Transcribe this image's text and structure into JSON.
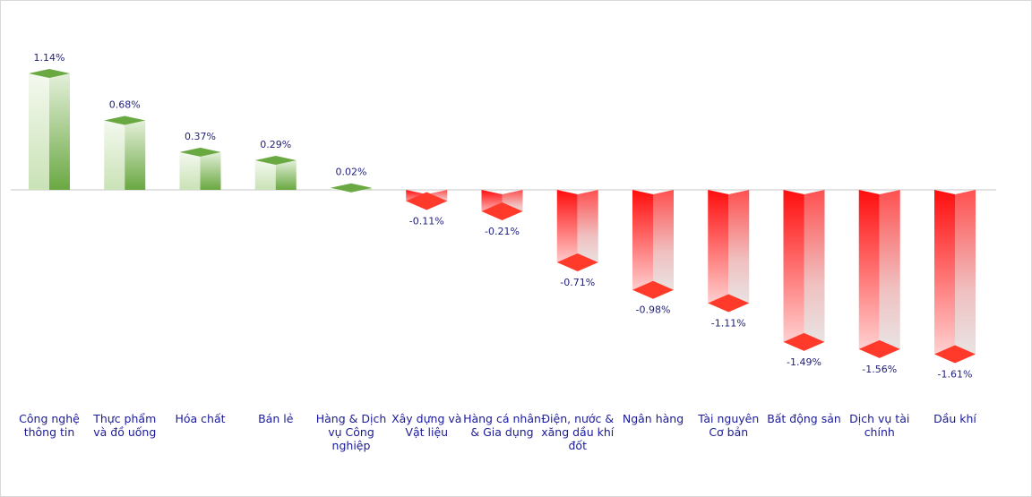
{
  "chart_data": {
    "type": "bar",
    "title": "",
    "xlabel": "",
    "ylabel": "",
    "categories": [
      [
        "Công nghệ",
        "thông tin"
      ],
      [
        "Thực phẩm",
        "và đồ uống"
      ],
      [
        "Hóa chất"
      ],
      [
        "Bán lẻ"
      ],
      [
        "Hàng & Dịch",
        "vụ Công",
        "nghiệp"
      ],
      [
        "Xây dựng và",
        "Vật liệu"
      ],
      [
        "Hàng cá nhân",
        "& Gia dụng"
      ],
      [
        "Điện, nước &",
        "xăng dầu khí",
        "đốt"
      ],
      [
        "Ngân hàng"
      ],
      [
        "Tài nguyên",
        "Cơ bản"
      ],
      [
        "Bất động sản"
      ],
      [
        "Dịch vụ tài",
        "chính"
      ],
      [
        "Dầu khí"
      ]
    ],
    "values": [
      1.14,
      0.68,
      0.37,
      0.29,
      0.02,
      -0.11,
      -0.21,
      -0.71,
      -0.98,
      -1.11,
      -1.49,
      -1.56,
      -1.61
    ],
    "data_labels": [
      "1.14%",
      "0.68%",
      "0.37%",
      "0.29%",
      "0.02%",
      "-0.11%",
      "-0.21%",
      "-0.71%",
      "-0.98%",
      "-1.11%",
      "-1.49%",
      "-1.56%",
      "-1.61%"
    ],
    "ylim": [
      -1.61,
      1.14
    ],
    "grid": false,
    "legend": "none",
    "colors": {
      "positive": "#70ad47",
      "negative": "#ff1a1a",
      "axis": "#d9d9d9",
      "label": "#1a1a9a"
    }
  }
}
